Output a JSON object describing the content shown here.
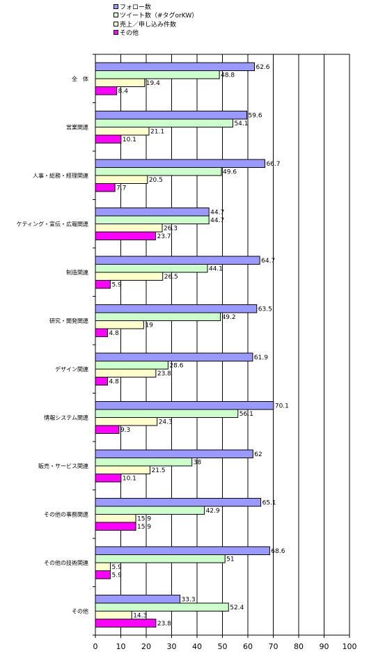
{
  "chart_data": {
    "type": "bar",
    "orientation": "horizontal",
    "categories": [
      "全　体",
      "営業関連",
      "人事・総務・経理関連",
      "ケティング・宣伝・広報関連",
      "制造関連",
      "研究・開発関連",
      "デザイン関連",
      "情報システム関連",
      "販売・サービス関連",
      "その他の事務関連",
      "その他の技術関連",
      "その他"
    ],
    "series": [
      {
        "name": "フォロー数",
        "color": "#9999ff",
        "values": [
          62.6,
          59.6,
          66.7,
          44.7,
          64.7,
          63.5,
          61.9,
          70.1,
          62,
          65.1,
          68.6,
          33.3
        ]
      },
      {
        "name": "ツイート数（#タグorKW）",
        "color": "#ccffcc",
        "values": [
          48.8,
          54.1,
          49.6,
          44.7,
          44.1,
          49.2,
          28.6,
          56.1,
          38,
          42.9,
          51,
          52.4
        ]
      },
      {
        "name": "売上／申し込み件数",
        "color": "#ffffcc",
        "values": [
          19.4,
          21.1,
          20.5,
          26.3,
          26.5,
          19,
          23.8,
          24.3,
          21.5,
          15.9,
          5.9,
          14.3
        ]
      },
      {
        "name": "その他",
        "color": "#ff00ff",
        "values": [
          8.4,
          10.1,
          7.7,
          23.7,
          5.9,
          4.8,
          4.8,
          9.3,
          10.1,
          15.9,
          5.9,
          23.8
        ]
      }
    ],
    "value_axis": {
      "min": 0,
      "max": 100,
      "ticks": [
        "0",
        "10",
        "20",
        "30",
        "40",
        "50",
        "60",
        "70",
        "80",
        "90",
        "100"
      ]
    },
    "grid": "vertical",
    "legend": "top"
  }
}
